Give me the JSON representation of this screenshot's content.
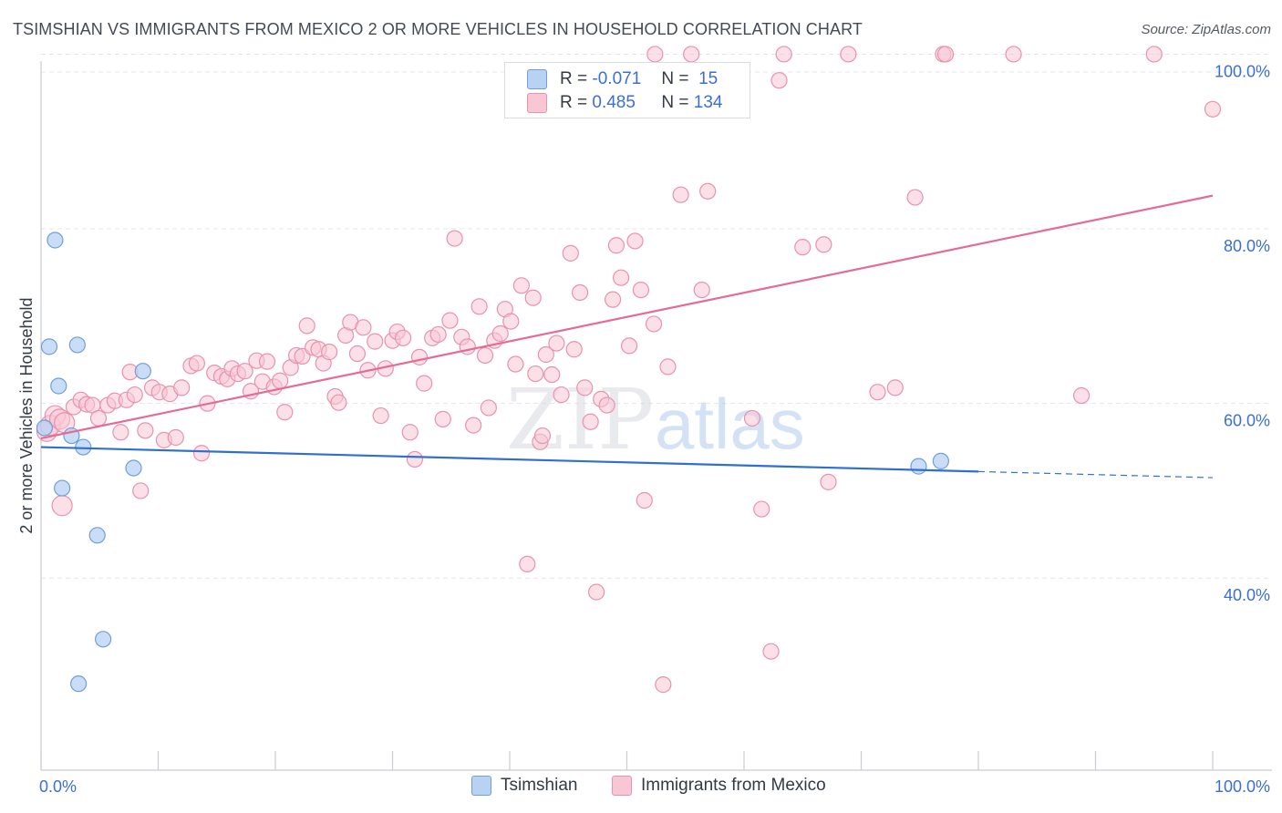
{
  "title": "TSIMSHIAN VS IMMIGRANTS FROM MEXICO 2 OR MORE VEHICLES IN HOUSEHOLD CORRELATION CHART",
  "source": "Source: ZipAtlas.com",
  "watermark": {
    "zip": "ZIP",
    "atlas": "atlas"
  },
  "legend": {
    "r_label": "R =",
    "n_label": "N =",
    "rows": [
      {
        "name": "Tsimshian",
        "r": "-0.071",
        "n": "15"
      },
      {
        "name": "Immigrants from Mexico",
        "r": "0.485",
        "n": "134"
      }
    ]
  },
  "bottom_legend": [
    "Tsimshian",
    "Immigrants from Mexico"
  ],
  "colors": {
    "tsimshian_fill": "#b8d2f3",
    "tsimshian_stroke": "#6f9fd8",
    "tsimshian_line": "#2f6fd1",
    "mexico_fill": "#f8c6d5",
    "mexico_stroke": "#e992ad",
    "mexico_line": "#e56b93",
    "axis_label": "#3b6fd4",
    "grid": "#e3e5ea"
  },
  "chart_data": {
    "type": "scatter",
    "title": "TSIMSHIAN VS IMMIGRANTS FROM MEXICO 2 OR MORE VEHICLES IN HOUSEHOLD CORRELATION CHART",
    "xlabel": "",
    "ylabel": "2 or more Vehicles in Household",
    "xlim": [
      0,
      100
    ],
    "ylim": [
      18,
      102
    ],
    "x_tick_labels": [
      "0.0%",
      "100.0%"
    ],
    "y_ticks": [
      40,
      60,
      80,
      100
    ],
    "y_tick_labels": [
      "40.0%",
      "60.0%",
      "80.0%",
      "100.0%"
    ],
    "series": [
      {
        "name": "Tsimshian",
        "r": -0.071,
        "n": 15,
        "points": [
          [
            0.3,
            57.2
          ],
          [
            1.2,
            78.7
          ],
          [
            0.7,
            66.5
          ],
          [
            3.1,
            66.7
          ],
          [
            1.5,
            62.0
          ],
          [
            2.6,
            56.3
          ],
          [
            3.6,
            55.0
          ],
          [
            1.8,
            50.3
          ],
          [
            8.7,
            63.7
          ],
          [
            7.9,
            52.6
          ],
          [
            4.8,
            44.9
          ],
          [
            5.3,
            33.0
          ],
          [
            3.2,
            27.9
          ],
          [
            74.9,
            52.8
          ],
          [
            76.8,
            53.4
          ]
        ],
        "trend": {
          "x": [
            0,
            80
          ],
          "y": [
            55.0,
            52.2
          ],
          "dashed_to": [
            100,
            51.5
          ]
        }
      },
      {
        "name": "Immigrants from Mexico",
        "r": 0.485,
        "n": 134,
        "points": [
          [
            0.5,
            56.8
          ],
          [
            0.8,
            57.5
          ],
          [
            1.2,
            58.6
          ],
          [
            1.6,
            58.2
          ],
          [
            2.0,
            57.8
          ],
          [
            1.8,
            48.3
          ],
          [
            2.8,
            59.6
          ],
          [
            3.4,
            60.4
          ],
          [
            3.9,
            59.9
          ],
          [
            4.4,
            59.8
          ],
          [
            4.9,
            58.3
          ],
          [
            5.7,
            59.8
          ],
          [
            6.3,
            60.3
          ],
          [
            6.8,
            56.7
          ],
          [
            7.3,
            60.4
          ],
          [
            7.6,
            63.6
          ],
          [
            8.0,
            61.0
          ],
          [
            8.5,
            50.0
          ],
          [
            8.9,
            56.9
          ],
          [
            9.5,
            61.8
          ],
          [
            10.1,
            61.3
          ],
          [
            10.5,
            55.8
          ],
          [
            11.0,
            61.1
          ],
          [
            11.5,
            56.1
          ],
          [
            12.0,
            61.8
          ],
          [
            12.8,
            64.3
          ],
          [
            13.3,
            64.6
          ],
          [
            13.7,
            54.3
          ],
          [
            14.2,
            60.0
          ],
          [
            14.8,
            63.5
          ],
          [
            15.4,
            63.1
          ],
          [
            15.9,
            62.8
          ],
          [
            16.3,
            64.0
          ],
          [
            16.8,
            63.4
          ],
          [
            17.4,
            63.7
          ],
          [
            17.9,
            61.4
          ],
          [
            18.4,
            64.9
          ],
          [
            18.9,
            62.5
          ],
          [
            19.3,
            64.8
          ],
          [
            19.9,
            61.9
          ],
          [
            20.4,
            62.6
          ],
          [
            20.8,
            59.0
          ],
          [
            21.3,
            64.1
          ],
          [
            21.8,
            65.5
          ],
          [
            22.3,
            65.4
          ],
          [
            22.7,
            68.9
          ],
          [
            23.2,
            66.4
          ],
          [
            23.7,
            66.2
          ],
          [
            24.1,
            64.6
          ],
          [
            24.6,
            65.9
          ],
          [
            25.1,
            60.8
          ],
          [
            25.4,
            60.1
          ],
          [
            26.0,
            67.8
          ],
          [
            26.4,
            69.3
          ],
          [
            27.0,
            65.7
          ],
          [
            27.5,
            68.7
          ],
          [
            27.9,
            63.8
          ],
          [
            28.5,
            67.1
          ],
          [
            29.0,
            58.6
          ],
          [
            29.4,
            64.0
          ],
          [
            30.0,
            67.2
          ],
          [
            30.4,
            68.2
          ],
          [
            30.9,
            67.5
          ],
          [
            31.5,
            56.7
          ],
          [
            31.9,
            53.6
          ],
          [
            32.3,
            65.3
          ],
          [
            32.7,
            62.3
          ],
          [
            33.4,
            67.5
          ],
          [
            33.9,
            67.9
          ],
          [
            34.3,
            58.2
          ],
          [
            34.9,
            69.5
          ],
          [
            35.3,
            78.9
          ],
          [
            35.9,
            67.6
          ],
          [
            36.4,
            66.5
          ],
          [
            36.9,
            57.5
          ],
          [
            37.4,
            71.1
          ],
          [
            37.9,
            65.5
          ],
          [
            38.2,
            59.5
          ],
          [
            38.7,
            67.2
          ],
          [
            39.2,
            68.0
          ],
          [
            39.6,
            70.8
          ],
          [
            40.1,
            69.4
          ],
          [
            40.5,
            64.5
          ],
          [
            41.0,
            73.5
          ],
          [
            41.5,
            41.6
          ],
          [
            42.0,
            72.1
          ],
          [
            42.2,
            63.4
          ],
          [
            42.6,
            55.6
          ],
          [
            42.8,
            56.3
          ],
          [
            43.1,
            65.6
          ],
          [
            43.6,
            63.3
          ],
          [
            44.0,
            66.9
          ],
          [
            44.4,
            61.0
          ],
          [
            45.2,
            77.2
          ],
          [
            45.5,
            66.2
          ],
          [
            46.0,
            72.7
          ],
          [
            46.4,
            61.8
          ],
          [
            46.9,
            57.9
          ],
          [
            47.4,
            38.4
          ],
          [
            47.8,
            60.5
          ],
          [
            48.3,
            59.8
          ],
          [
            48.8,
            71.9
          ],
          [
            49.1,
            78.1
          ],
          [
            49.5,
            74.4
          ],
          [
            50.2,
            66.6
          ],
          [
            50.7,
            78.6
          ],
          [
            51.2,
            73.0
          ],
          [
            51.5,
            48.9
          ],
          [
            52.3,
            69.1
          ],
          [
            52.4,
            100.0
          ],
          [
            53.1,
            27.8
          ],
          [
            53.5,
            64.2
          ],
          [
            54.6,
            83.9
          ],
          [
            55.5,
            100.0
          ],
          [
            56.4,
            73.0
          ],
          [
            56.9,
            84.3
          ],
          [
            60.7,
            58.3
          ],
          [
            61.5,
            47.9
          ],
          [
            62.3,
            31.6
          ],
          [
            63.4,
            100.0
          ],
          [
            63.0,
            97.0
          ],
          [
            65.0,
            77.9
          ],
          [
            66.8,
            78.2
          ],
          [
            67.2,
            51.0
          ],
          [
            68.9,
            100.0
          ],
          [
            71.4,
            61.3
          ],
          [
            72.9,
            61.8
          ],
          [
            74.6,
            83.6
          ],
          [
            77.0,
            100.0
          ],
          [
            77.2,
            100.0
          ],
          [
            83.0,
            100.0
          ],
          [
            88.8,
            60.9
          ],
          [
            95.0,
            100.0
          ],
          [
            100.0,
            93.7
          ]
        ],
        "trend": {
          "x": [
            0,
            100
          ],
          "y": [
            56.0,
            83.8
          ]
        }
      }
    ]
  }
}
